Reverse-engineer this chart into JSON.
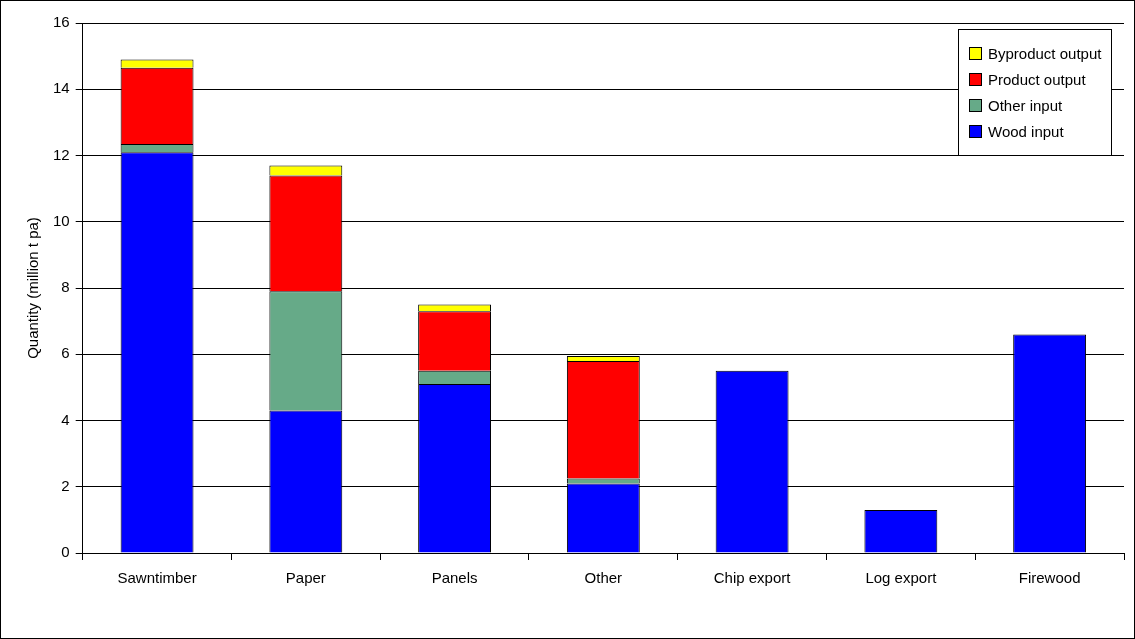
{
  "chart_data": {
    "type": "bar",
    "stacked": true,
    "ylabel": "Quantity (million t pa)",
    "categories": [
      "Sawntimber",
      "Paper",
      "Panels",
      "Other",
      "Chip export",
      "Log export",
      "Firewood"
    ],
    "series": [
      {
        "name": "Wood input",
        "color": "#0000ff",
        "values": [
          12.1,
          4.3,
          5.1,
          2.1,
          5.5,
          1.3,
          6.6
        ]
      },
      {
        "name": "Other input",
        "color": "#66aa88",
        "values": [
          0.25,
          3.6,
          0.4,
          0.15,
          null,
          null,
          null
        ]
      },
      {
        "name": "Product output",
        "color": "#ff0000",
        "values": [
          2.3,
          3.5,
          1.8,
          3.55,
          null,
          null,
          null
        ]
      },
      {
        "name": "Byproduct output",
        "color": "#ffff00",
        "values": [
          0.25,
          0.3,
          0.2,
          0.15,
          null,
          null,
          null
        ]
      }
    ],
    "ylim": [
      0,
      16
    ],
    "yticks": [
      0,
      2,
      4,
      6,
      8,
      10,
      12,
      14,
      16
    ],
    "grid": "y",
    "legend": "top right"
  }
}
